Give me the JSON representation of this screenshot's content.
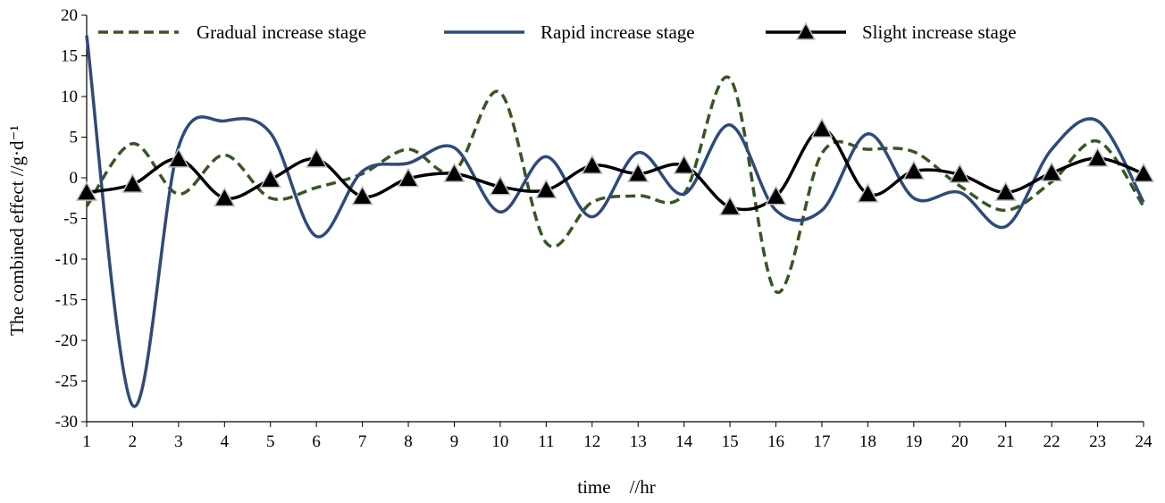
{
  "chart_data": {
    "type": "line",
    "xlabel": "time    //hr",
    "ylabel": "The combined effect //g·d⁻¹",
    "x": [
      1,
      2,
      3,
      4,
      5,
      6,
      7,
      8,
      9,
      10,
      11,
      12,
      13,
      14,
      15,
      16,
      17,
      18,
      19,
      20,
      21,
      22,
      23,
      24
    ],
    "xlim": [
      1,
      24
    ],
    "ylim": [
      -30,
      20
    ],
    "yticks": [
      20,
      15,
      10,
      5,
      0,
      -5,
      -10,
      -15,
      -20,
      -25,
      -30
    ],
    "grid": false,
    "legend_position": "top",
    "series": [
      {
        "name": "Gradual increase stage",
        "color": "#375623",
        "style": "dashed",
        "marker": "none",
        "values": [
          -3.5,
          4.2,
          -2.0,
          2.8,
          -2.5,
          -1.2,
          0.5,
          3.5,
          0.8,
          10.5,
          -8.0,
          -3.0,
          -2.2,
          -2.0,
          12.2,
          -14.0,
          3.0,
          3.5,
          3.2,
          -1.0,
          -4.0,
          -0.5,
          4.5,
          -3.5
        ]
      },
      {
        "name": "Rapid increase stage",
        "color": "#2F4A7A",
        "style": "solid",
        "marker": "none",
        "values": [
          17.5,
          -28.0,
          3.8,
          7.0,
          5.5,
          -7.2,
          0.8,
          1.8,
          3.7,
          -4.2,
          2.6,
          -4.8,
          3.1,
          -2.0,
          6.5,
          -4.0,
          -4.0,
          5.4,
          -2.5,
          -1.8,
          -6.0,
          3.5,
          7.0,
          -3.0
        ]
      },
      {
        "name": "Slight increase stage",
        "color": "#000000",
        "style": "solid",
        "marker": "triangle",
        "values": [
          -1.8,
          -0.8,
          2.3,
          -2.5,
          -0.2,
          2.3,
          -2.3,
          -0.1,
          0.5,
          -1.1,
          -1.5,
          1.5,
          0.5,
          1.5,
          -3.6,
          -2.3,
          6.0,
          -2.0,
          0.8,
          0.4,
          -1.8,
          0.6,
          2.4,
          0.5
        ]
      }
    ]
  }
}
